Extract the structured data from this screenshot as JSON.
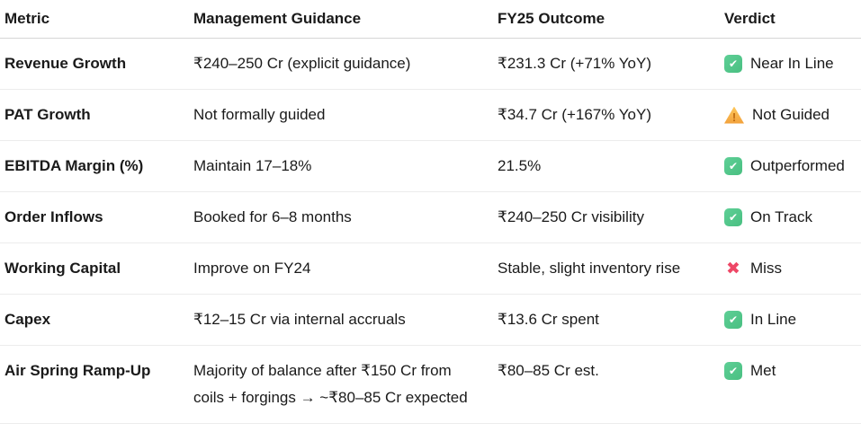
{
  "table": {
    "columns": [
      {
        "label": "Metric"
      },
      {
        "label": "Management Guidance"
      },
      {
        "label": "FY25 Outcome"
      },
      {
        "label": "Verdict"
      }
    ],
    "rows": [
      {
        "metric": "Revenue Growth",
        "guidance": "₹240–250 Cr (explicit guidance)",
        "outcome": "₹231.3 Cr (+71% YoY)",
        "verdict": {
          "icon": "check-icon",
          "label": "Near In Line"
        }
      },
      {
        "metric": "PAT Growth",
        "guidance": "Not formally guided",
        "outcome": "₹34.7 Cr (+167% YoY)",
        "verdict": {
          "icon": "warning-icon",
          "label": "Not Guided"
        }
      },
      {
        "metric": "EBITDA Margin (%)",
        "guidance": "Maintain 17–18%",
        "outcome": "21.5%",
        "verdict": {
          "icon": "check-icon",
          "label": "Outperformed"
        }
      },
      {
        "metric": "Order Inflows",
        "guidance": "Booked for 6–8 months",
        "outcome": "₹240–250 Cr visibility",
        "verdict": {
          "icon": "check-icon",
          "label": "On Track"
        }
      },
      {
        "metric": "Working Capital",
        "guidance": "Improve on FY24",
        "outcome": "Stable, slight inventory rise",
        "verdict": {
          "icon": "cross-icon",
          "label": "Miss"
        }
      },
      {
        "metric": "Capex",
        "guidance": "₹12–15 Cr via internal accruals",
        "outcome": "₹13.6 Cr spent",
        "verdict": {
          "icon": "check-icon",
          "label": "In Line"
        }
      },
      {
        "metric": "Air Spring Ramp-Up",
        "guidance": "Majority of balance after ₹150 Cr from coils + forgings → ~₹80–85 Cr expected",
        "outcome": "₹80–85 Cr est.",
        "verdict": {
          "icon": "check-icon",
          "label": "Met"
        }
      }
    ]
  },
  "colors": {
    "check_green": "#4fc287",
    "warning_amber": "#f5a93f",
    "warning_mark": "#bf6a10",
    "cross_pink": "#ee4766",
    "header_border": "#d6d6d6",
    "row_border": "#ececec",
    "text": "#1a1a1a"
  }
}
